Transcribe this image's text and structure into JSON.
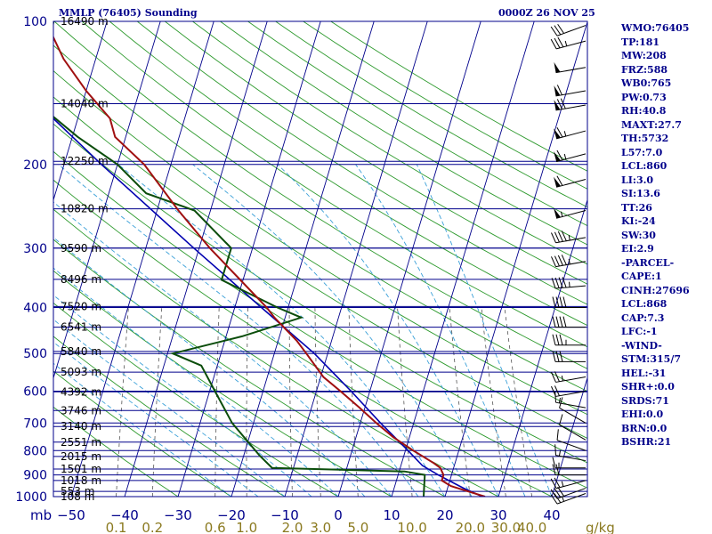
{
  "header": {
    "title": "MMLP (76405) Sounding",
    "datetime": "0000Z 26 NOV 25"
  },
  "indices": [
    "WMO:76405",
    "TP:181",
    "MW:208",
    "FRZ:588",
    "WB0:765",
    "PW:0.73",
    "RH:40.8",
    "MAXT:27.7",
    "TH:5732",
    "L57:7.0",
    "LCL:860",
    "LI:3.0",
    "SI:13.6",
    "TT:26",
    "KI:-24",
    "SW:30",
    "EI:2.9",
    "-PARCEL-",
    "CAPE:1",
    "CINH:27696",
    "LCL:868",
    "CAP:7.3",
    "LFC:-1",
    "-WIND-",
    "STM:315/7",
    "HEL:-31",
    "SHR+:0.0",
    "SRDS:71",
    "EHI:0.0",
    "BRN:0.0",
    "BSHR:21"
  ],
  "colors": {
    "isobar": "#00008b",
    "isotherm": "#00008b",
    "dry_adiabat": "#2e9a2e",
    "moist_adiabat": "#3aa0d8",
    "mixing_ratio": "#555555",
    "temperature": "#a01010",
    "dewpoint": "#0b4d0b",
    "parcel": "#0000b0",
    "wind_barb": "#000000",
    "mixing_label": "#8b7a20"
  },
  "chart_data": {
    "type": "skew-t",
    "pressure_levels": [
      1000,
      900,
      800,
      700,
      600,
      500,
      400,
      300,
      200,
      100
    ],
    "pressure_tick_labels": [
      "1000",
      "900",
      "800",
      "700",
      "600",
      "500",
      "400",
      "300",
      "200",
      "100"
    ],
    "height_labels": [
      {
        "p": 1000,
        "text": "108 m"
      },
      {
        "p": 975,
        "text": "553 m"
      },
      {
        "p": 925,
        "text": "1018 m"
      },
      {
        "p": 875,
        "text": "1501 m"
      },
      {
        "p": 823,
        "text": "2015 m"
      },
      {
        "p": 768,
        "text": "2551 m"
      },
      {
        "p": 712,
        "text": "3140 m"
      },
      {
        "p": 659,
        "text": "3746 m"
      },
      {
        "p": 602,
        "text": "4392 m"
      },
      {
        "p": 547,
        "text": "5093 m"
      },
      {
        "p": 495,
        "text": "5840 m"
      },
      {
        "p": 440,
        "text": "6541 m"
      },
      {
        "p": 398,
        "text": "7520 m"
      },
      {
        "p": 349,
        "text": "8496 m"
      },
      {
        "p": 300,
        "text": "9590 m"
      },
      {
        "p": 248,
        "text": "10820 m"
      },
      {
        "p": 197,
        "text": "12250 m"
      },
      {
        "p": 149,
        "text": "14040 m"
      },
      {
        "p": 100,
        "text": "16490 m"
      }
    ],
    "temperature_tick_labels": [
      "−50",
      "−40",
      "−30",
      "−20",
      "−10",
      "0",
      "10",
      "20",
      "30",
      "40"
    ],
    "temperature_ticks": [
      -50,
      -40,
      -30,
      -20,
      -10,
      0,
      10,
      20,
      30,
      40
    ],
    "pressure_unit": "mb",
    "mixing_ratio_unit": "g/kg",
    "mixing_ratio_labels": [
      "0.1",
      "0.2",
      "0.6",
      "1.0",
      "2.0",
      "3.0",
      "5.0",
      "10.0",
      "20.0",
      "30.0",
      "40.0"
    ],
    "mixing_ratio_values": [
      0.1,
      0.2,
      0.6,
      1.0,
      2.0,
      3.0,
      5.0,
      10.0,
      20.0,
      30.0,
      40.0
    ],
    "temperature_profile": [
      {
        "p": 1000,
        "t": 27.5
      },
      {
        "p": 975,
        "t": 24
      },
      {
        "p": 950,
        "t": 20.5
      },
      {
        "p": 925,
        "t": 18.5
      },
      {
        "p": 900,
        "t": 18.5
      },
      {
        "p": 870,
        "t": 17.5
      },
      {
        "p": 850,
        "t": 16
      },
      {
        "p": 800,
        "t": 11.5
      },
      {
        "p": 750,
        "t": 7
      },
      {
        "p": 700,
        "t": 3
      },
      {
        "p": 650,
        "t": -1
      },
      {
        "p": 600,
        "t": -5.5
      },
      {
        "p": 560,
        "t": -9.5
      },
      {
        "p": 500,
        "t": -14
      },
      {
        "p": 470,
        "t": -16.5
      },
      {
        "p": 420,
        "t": -22
      },
      {
        "p": 400,
        "t": -24
      },
      {
        "p": 350,
        "t": -30.5
      },
      {
        "p": 300,
        "t": -38
      },
      {
        "p": 250,
        "t": -46
      },
      {
        "p": 200,
        "t": -55
      },
      {
        "p": 175,
        "t": -62
      },
      {
        "p": 160,
        "t": -64
      },
      {
        "p": 140,
        "t": -70
      },
      {
        "p": 120,
        "t": -76
      },
      {
        "p": 105,
        "t": -80
      },
      {
        "p": 100,
        "t": -82
      }
    ],
    "dewpoint_profile": [
      {
        "p": 1000,
        "t": 16
      },
      {
        "p": 950,
        "t": 15.5
      },
      {
        "p": 900,
        "t": 15
      },
      {
        "p": 885,
        "t": 11
      },
      {
        "p": 870,
        "t": -14
      },
      {
        "p": 820,
        "t": -17
      },
      {
        "p": 700,
        "t": -24
      },
      {
        "p": 600,
        "t": -29
      },
      {
        "p": 530,
        "t": -33
      },
      {
        "p": 500,
        "t": -39
      },
      {
        "p": 460,
        "t": -27
      },
      {
        "p": 420,
        "t": -17
      },
      {
        "p": 400,
        "t": -22
      },
      {
        "p": 350,
        "t": -34
      },
      {
        "p": 300,
        "t": -34
      },
      {
        "p": 250,
        "t": -43
      },
      {
        "p": 230,
        "t": -53
      },
      {
        "p": 200,
        "t": -60
      },
      {
        "p": 175,
        "t": -69
      },
      {
        "p": 150,
        "t": -78
      },
      {
        "p": 125,
        "t": -79
      },
      {
        "p": 100,
        "t": -80
      }
    ],
    "parcel_profile": [
      {
        "p": 1000,
        "t": 27
      },
      {
        "p": 960,
        "t": 23
      },
      {
        "p": 900,
        "t": 17.5
      },
      {
        "p": 860,
        "t": 14
      },
      {
        "p": 800,
        "t": 10.5
      },
      {
        "p": 700,
        "t": 3.8
      },
      {
        "p": 600,
        "t": -3.5
      },
      {
        "p": 500,
        "t": -12.5
      },
      {
        "p": 400,
        "t": -25
      },
      {
        "p": 300,
        "t": -41
      },
      {
        "p": 200,
        "t": -63
      },
      {
        "p": 150,
        "t": -78
      },
      {
        "p": 120,
        "t": -88
      },
      {
        "p": 100,
        "t": -95
      }
    ],
    "wind_barbs": [
      {
        "p": 985,
        "dir": 250,
        "speed": 25
      },
      {
        "p": 960,
        "dir": 250,
        "speed": 30
      },
      {
        "p": 925,
        "dir": 255,
        "speed": 25
      },
      {
        "p": 900,
        "dir": 270,
        "speed": 20
      },
      {
        "p": 870,
        "dir": 270,
        "speed": 15
      },
      {
        "p": 840,
        "dir": 280,
        "speed": 15
      },
      {
        "p": 800,
        "dir": 290,
        "speed": 10
      },
      {
        "p": 760,
        "dir": 300,
        "speed": 10
      },
      {
        "p": 700,
        "dir": 300,
        "speed": 10
      },
      {
        "p": 650,
        "dir": 280,
        "speed": 15
      },
      {
        "p": 600,
        "dir": 260,
        "speed": 20
      },
      {
        "p": 560,
        "dir": 260,
        "speed": 25
      },
      {
        "p": 520,
        "dir": 270,
        "speed": 30
      },
      {
        "p": 480,
        "dir": 270,
        "speed": 35
      },
      {
        "p": 440,
        "dir": 270,
        "speed": 40
      },
      {
        "p": 400,
        "dir": 270,
        "speed": 40
      },
      {
        "p": 360,
        "dir": 265,
        "speed": 45
      },
      {
        "p": 320,
        "dir": 260,
        "speed": 45
      },
      {
        "p": 285,
        "dir": 260,
        "speed": 45
      },
      {
        "p": 250,
        "dir": 255,
        "speed": 55
      },
      {
        "p": 215,
        "dir": 255,
        "speed": 60
      },
      {
        "p": 190,
        "dir": 255,
        "speed": 65
      },
      {
        "p": 170,
        "dir": 255,
        "speed": 65
      },
      {
        "p": 150,
        "dir": 260,
        "speed": 70
      },
      {
        "p": 140,
        "dir": 260,
        "speed": 60
      },
      {
        "p": 125,
        "dir": 260,
        "speed": 50
      },
      {
        "p": 110,
        "dir": 255,
        "speed": 35
      },
      {
        "p": 102,
        "dir": 250,
        "speed": 30
      }
    ]
  }
}
